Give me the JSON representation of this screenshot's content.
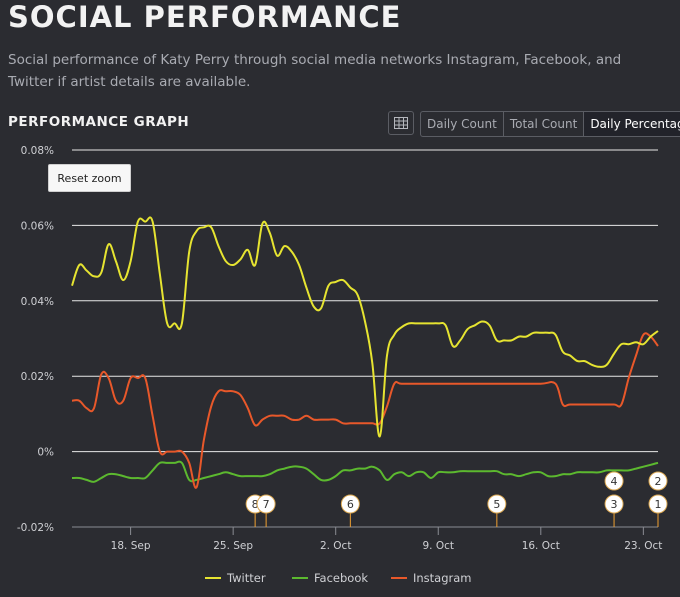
{
  "header": {
    "title": "SOCIAL PERFORMANCE",
    "subtitle": "Social performance of Katy Perry through social media networks Instagram, Facebook, and Twitter if artist details are available."
  },
  "section_title": "PERFORMANCE GRAPH",
  "controls": {
    "table_icon": "table-icon",
    "buttons": [
      "Daily Count",
      "Total Count",
      "Daily Percentage"
    ],
    "active": "Daily Percentage",
    "reset_zoom": "Reset zoom"
  },
  "chart_data": {
    "type": "line",
    "x_range": [
      "2023-09-14",
      "2023-10-24"
    ],
    "xlabels": [
      "18. Sep",
      "25. Sep",
      "2. Oct",
      "9. Oct",
      "16. Oct",
      "23. Oct"
    ],
    "x_ticks": [
      "2023-09-18",
      "2023-09-25",
      "2023-10-02",
      "2023-10-09",
      "2023-10-16",
      "2023-10-23"
    ],
    "ylim": [
      -0.02,
      0.08
    ],
    "yticks": [
      -0.02,
      0,
      0.02,
      0.04,
      0.06,
      0.08
    ],
    "ytick_labels": [
      "-0.02%",
      "0%",
      "0.02%",
      "0.04%",
      "0.06%",
      "0.08%"
    ],
    "grid": true,
    "legend_position": "bottom",
    "series": [
      {
        "name": "Twitter",
        "color": "#e6e431",
        "points": [
          [
            "2023-09-14",
            0.044
          ],
          [
            "2023-09-14 12:00",
            0.0495
          ],
          [
            "2023-09-15",
            0.048
          ],
          [
            "2023-09-15 12:00",
            0.0465
          ],
          [
            "2023-09-16",
            0.0475
          ],
          [
            "2023-09-16 12:00",
            0.055
          ],
          [
            "2023-09-17",
            0.0505
          ],
          [
            "2023-09-17 12:00",
            0.0455
          ],
          [
            "2023-09-18",
            0.0505
          ],
          [
            "2023-09-18 12:00",
            0.061
          ],
          [
            "2023-09-19",
            0.061
          ],
          [
            "2023-09-19 12:00",
            0.061
          ],
          [
            "2023-09-20",
            0.047
          ],
          [
            "2023-09-20 12:00",
            0.034
          ],
          [
            "2023-09-21",
            0.034
          ],
          [
            "2023-09-21 12:00",
            0.034
          ],
          [
            "2023-09-22",
            0.053
          ],
          [
            "2023-09-22 12:00",
            0.0585
          ],
          [
            "2023-09-23",
            0.0595
          ],
          [
            "2023-09-23 12:00",
            0.0595
          ],
          [
            "2023-09-24",
            0.0545
          ],
          [
            "2023-09-24 12:00",
            0.0505
          ],
          [
            "2023-09-25",
            0.0495
          ],
          [
            "2023-09-25 12:00",
            0.051
          ],
          [
            "2023-09-26",
            0.0535
          ],
          [
            "2023-09-26 12:00",
            0.0495
          ],
          [
            "2023-09-27",
            0.0605
          ],
          [
            "2023-09-27 12:00",
            0.058
          ],
          [
            "2023-09-28",
            0.052
          ],
          [
            "2023-09-28 12:00",
            0.0545
          ],
          [
            "2023-09-29",
            0.053
          ],
          [
            "2023-09-29 12:00",
            0.0495
          ],
          [
            "2023-09-30",
            0.0435
          ],
          [
            "2023-09-30 12:00",
            0.0385
          ],
          [
            "2023-10-01",
            0.038
          ],
          [
            "2023-10-01 12:00",
            0.044
          ],
          [
            "2023-10-02",
            0.045
          ],
          [
            "2023-10-02 12:00",
            0.0455
          ],
          [
            "2023-10-03",
            0.0435
          ],
          [
            "2023-10-03 12:00",
            0.0415
          ],
          [
            "2023-10-04",
            0.0345
          ],
          [
            "2023-10-04 12:00",
            0.0235
          ],
          [
            "2023-10-05",
            0.004
          ],
          [
            "2023-10-05 12:00",
            0.0255
          ],
          [
            "2023-10-06",
            0.031
          ],
          [
            "2023-10-06 12:00",
            0.033
          ],
          [
            "2023-10-07",
            0.034
          ],
          [
            "2023-10-07 12:00",
            0.034
          ],
          [
            "2023-10-08",
            0.034
          ],
          [
            "2023-10-08 12:00",
            0.034
          ],
          [
            "2023-10-09",
            0.034
          ],
          [
            "2023-10-09 12:00",
            0.0335
          ],
          [
            "2023-10-10",
            0.028
          ],
          [
            "2023-10-10 12:00",
            0.0295
          ],
          [
            "2023-10-11",
            0.0325
          ],
          [
            "2023-10-11 12:00",
            0.0335
          ],
          [
            "2023-10-12",
            0.0345
          ],
          [
            "2023-10-12 12:00",
            0.0335
          ],
          [
            "2023-10-13",
            0.0295
          ],
          [
            "2023-10-13 12:00",
            0.0295
          ],
          [
            "2023-10-14",
            0.0295
          ],
          [
            "2023-10-14 12:00",
            0.0305
          ],
          [
            "2023-10-15",
            0.0305
          ],
          [
            "2023-10-15 12:00",
            0.0315
          ],
          [
            "2023-10-16",
            0.0315
          ],
          [
            "2023-10-16 12:00",
            0.0315
          ],
          [
            "2023-10-17",
            0.031
          ],
          [
            "2023-10-17 12:00",
            0.0265
          ],
          [
            "2023-10-18",
            0.0255
          ],
          [
            "2023-10-18 12:00",
            0.024
          ],
          [
            "2023-10-19",
            0.024
          ],
          [
            "2023-10-19 12:00",
            0.023
          ],
          [
            "2023-10-20",
            0.0225
          ],
          [
            "2023-10-20 12:00",
            0.023
          ],
          [
            "2023-10-21",
            0.026
          ],
          [
            "2023-10-21 12:00",
            0.0285
          ],
          [
            "2023-10-22",
            0.0285
          ],
          [
            "2023-10-22 12:00",
            0.029
          ],
          [
            "2023-10-23",
            0.0285
          ],
          [
            "2023-10-23 12:00",
            0.0305
          ],
          [
            "2023-10-24",
            0.032
          ]
        ]
      },
      {
        "name": "Facebook",
        "color": "#5cb92f",
        "points": [
          [
            "2023-09-14",
            -0.007
          ],
          [
            "2023-09-14 12:00",
            -0.007
          ],
          [
            "2023-09-15",
            -0.0075
          ],
          [
            "2023-09-15 12:00",
            -0.008
          ],
          [
            "2023-09-16",
            -0.007
          ],
          [
            "2023-09-16 12:00",
            -0.006
          ],
          [
            "2023-09-17",
            -0.006
          ],
          [
            "2023-09-17 12:00",
            -0.0065
          ],
          [
            "2023-09-18",
            -0.007
          ],
          [
            "2023-09-18 12:00",
            -0.007
          ],
          [
            "2023-09-19",
            -0.007
          ],
          [
            "2023-09-19 12:00",
            -0.005
          ],
          [
            "2023-09-20",
            -0.003
          ],
          [
            "2023-09-20 12:00",
            -0.003
          ],
          [
            "2023-09-21",
            -0.003
          ],
          [
            "2023-09-21 12:00",
            -0.003
          ],
          [
            "2023-09-22",
            -0.0075
          ],
          [
            "2023-09-22 12:00",
            -0.0075
          ],
          [
            "2023-09-23",
            -0.007
          ],
          [
            "2023-09-23 12:00",
            -0.0065
          ],
          [
            "2023-09-24",
            -0.006
          ],
          [
            "2023-09-24 12:00",
            -0.0055
          ],
          [
            "2023-09-25",
            -0.006
          ],
          [
            "2023-09-25 12:00",
            -0.0065
          ],
          [
            "2023-09-26",
            -0.0065
          ],
          [
            "2023-09-26 12:00",
            -0.0065
          ],
          [
            "2023-09-27",
            -0.0065
          ],
          [
            "2023-09-27 12:00",
            -0.006
          ],
          [
            "2023-09-28",
            -0.005
          ],
          [
            "2023-09-28 12:00",
            -0.0045
          ],
          [
            "2023-09-29",
            -0.004
          ],
          [
            "2023-09-29 12:00",
            -0.004
          ],
          [
            "2023-09-30",
            -0.0045
          ],
          [
            "2023-09-30 12:00",
            -0.006
          ],
          [
            "2023-10-01",
            -0.0075
          ],
          [
            "2023-10-01 12:00",
            -0.0075
          ],
          [
            "2023-10-02",
            -0.0065
          ],
          [
            "2023-10-02 12:00",
            -0.005
          ],
          [
            "2023-10-03",
            -0.005
          ],
          [
            "2023-10-03 12:00",
            -0.0045
          ],
          [
            "2023-10-04",
            -0.0045
          ],
          [
            "2023-10-04 12:00",
            -0.004
          ],
          [
            "2023-10-05",
            -0.005
          ],
          [
            "2023-10-05 12:00",
            -0.0075
          ],
          [
            "2023-10-06",
            -0.006
          ],
          [
            "2023-10-06 12:00",
            -0.0055
          ],
          [
            "2023-10-07",
            -0.0065
          ],
          [
            "2023-10-07 12:00",
            -0.0055
          ],
          [
            "2023-10-08",
            -0.0055
          ],
          [
            "2023-10-08 12:00",
            -0.007
          ],
          [
            "2023-10-09",
            -0.0055
          ],
          [
            "2023-10-09 12:00",
            -0.0055
          ],
          [
            "2023-10-10",
            -0.0055
          ],
          [
            "2023-10-10 12:00",
            -0.0052
          ],
          [
            "2023-10-11",
            -0.0052
          ],
          [
            "2023-10-11 12:00",
            -0.0052
          ],
          [
            "2023-10-12",
            -0.0052
          ],
          [
            "2023-10-12 12:00",
            -0.0052
          ],
          [
            "2023-10-13",
            -0.0052
          ],
          [
            "2023-10-13 12:00",
            -0.006
          ],
          [
            "2023-10-14",
            -0.006
          ],
          [
            "2023-10-14 12:00",
            -0.0065
          ],
          [
            "2023-10-15",
            -0.006
          ],
          [
            "2023-10-15 12:00",
            -0.0055
          ],
          [
            "2023-10-16",
            -0.0055
          ],
          [
            "2023-10-16 12:00",
            -0.0065
          ],
          [
            "2023-10-17",
            -0.0065
          ],
          [
            "2023-10-17 12:00",
            -0.006
          ],
          [
            "2023-10-18",
            -0.006
          ],
          [
            "2023-10-18 12:00",
            -0.0055
          ],
          [
            "2023-10-19",
            -0.0055
          ],
          [
            "2023-10-19 12:00",
            -0.0055
          ],
          [
            "2023-10-20",
            -0.0055
          ],
          [
            "2023-10-20 12:00",
            -0.005
          ],
          [
            "2023-10-21",
            -0.005
          ],
          [
            "2023-10-21 12:00",
            -0.005
          ],
          [
            "2023-10-22",
            -0.005
          ],
          [
            "2023-10-22 12:00",
            -0.0045
          ],
          [
            "2023-10-23",
            -0.004
          ],
          [
            "2023-10-23 12:00",
            -0.0035
          ],
          [
            "2023-10-24",
            -0.003
          ]
        ]
      },
      {
        "name": "Instagram",
        "color": "#e8582a",
        "points": [
          [
            "2023-09-14",
            0.0135
          ],
          [
            "2023-09-14 12:00",
            0.0135
          ],
          [
            "2023-09-15",
            0.0115
          ],
          [
            "2023-09-15 12:00",
            0.0115
          ],
          [
            "2023-09-16",
            0.0205
          ],
          [
            "2023-09-16 12:00",
            0.0195
          ],
          [
            "2023-09-17",
            0.0135
          ],
          [
            "2023-09-17 12:00",
            0.0135
          ],
          [
            "2023-09-18",
            0.0195
          ],
          [
            "2023-09-18 12:00",
            0.0195
          ],
          [
            "2023-09-19",
            0.0195
          ],
          [
            "2023-09-19 12:00",
            0.0095
          ],
          [
            "2023-09-20",
            0.0
          ],
          [
            "2023-09-20 12:00",
            0.0
          ],
          [
            "2023-09-21",
            0.0
          ],
          [
            "2023-09-21 12:00",
            0.0
          ],
          [
            "2023-09-22",
            -0.003
          ],
          [
            "2023-09-22 12:00",
            -0.0095
          ],
          [
            "2023-09-23",
            0.003
          ],
          [
            "2023-09-23 12:00",
            0.012
          ],
          [
            "2023-09-24",
            0.016
          ],
          [
            "2023-09-24 12:00",
            0.016
          ],
          [
            "2023-09-25",
            0.016
          ],
          [
            "2023-09-25 12:00",
            0.015
          ],
          [
            "2023-09-26",
            0.0115
          ],
          [
            "2023-09-26 12:00",
            0.007
          ],
          [
            "2023-09-27",
            0.0085
          ],
          [
            "2023-09-27 12:00",
            0.0095
          ],
          [
            "2023-09-28",
            0.0095
          ],
          [
            "2023-09-28 12:00",
            0.0095
          ],
          [
            "2023-09-29",
            0.0085
          ],
          [
            "2023-09-29 12:00",
            0.0085
          ],
          [
            "2023-09-30",
            0.0095
          ],
          [
            "2023-09-30 12:00",
            0.0085
          ],
          [
            "2023-10-01",
            0.0085
          ],
          [
            "2023-10-01 12:00",
            0.0085
          ],
          [
            "2023-10-02",
            0.0085
          ],
          [
            "2023-10-02 12:00",
            0.0075
          ],
          [
            "2023-10-03",
            0.0075
          ],
          [
            "2023-10-03 12:00",
            0.0075
          ],
          [
            "2023-10-04",
            0.0075
          ],
          [
            "2023-10-04 12:00",
            0.0075
          ],
          [
            "2023-10-05",
            0.0075
          ],
          [
            "2023-10-05 12:00",
            0.012
          ],
          [
            "2023-10-06",
            0.018
          ],
          [
            "2023-10-06 12:00",
            0.018
          ],
          [
            "2023-10-08",
            0.018
          ],
          [
            "2023-10-10",
            0.018
          ],
          [
            "2023-10-12",
            0.018
          ],
          [
            "2023-10-14",
            0.018
          ],
          [
            "2023-10-16",
            0.018
          ],
          [
            "2023-10-17",
            0.018
          ],
          [
            "2023-10-17 12:00",
            0.0125
          ],
          [
            "2023-10-18",
            0.0125
          ],
          [
            "2023-10-19",
            0.0125
          ],
          [
            "2023-10-20",
            0.0125
          ],
          [
            "2023-10-21",
            0.0125
          ],
          [
            "2023-10-21 12:00",
            0.0125
          ],
          [
            "2023-10-22",
            0.0195
          ],
          [
            "2023-10-22 12:00",
            0.0255
          ],
          [
            "2023-10-23",
            0.031
          ],
          [
            "2023-10-23 12:00",
            0.0305
          ],
          [
            "2023-10-24",
            0.028
          ]
        ]
      }
    ],
    "annotations": [
      {
        "label": "8",
        "date": "2023-09-26 12:00",
        "row": 0
      },
      {
        "label": "7",
        "date": "2023-09-27 06:00",
        "row": 0
      },
      {
        "label": "6",
        "date": "2023-10-03",
        "row": 0
      },
      {
        "label": "5",
        "date": "2023-10-13",
        "row": 0
      },
      {
        "label": "4",
        "date": "2023-10-21",
        "row": 1
      },
      {
        "label": "3",
        "date": "2023-10-21",
        "row": 0
      },
      {
        "label": "2",
        "date": "2023-10-24",
        "row": 1
      },
      {
        "label": "1",
        "date": "2023-10-24",
        "row": 0
      }
    ]
  }
}
